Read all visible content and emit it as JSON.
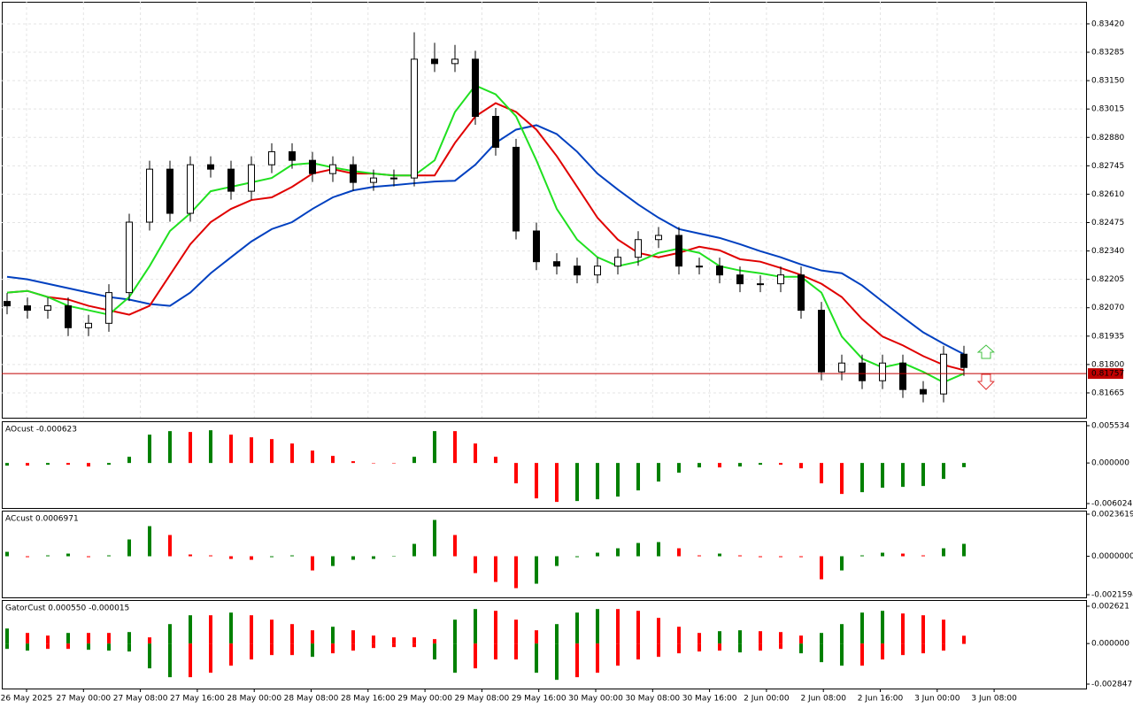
{
  "chart_data": [
    {
      "type": "candlestick",
      "grid": true,
      "up_color": "#ffffff",
      "down_color": "#000000",
      "ylim": [
        0.81547,
        0.83525
      ],
      "yticks": [
        {
          "value": 0.8342,
          "label": "0.83420"
        },
        0.83285,
        {
          "value": 0.8315,
          "label": "0.83150"
        },
        0.83015,
        {
          "value": 0.8288,
          "label": "0.82880"
        },
        0.82745,
        {
          "value": 0.8261,
          "label": "0.82610"
        },
        0.82475,
        {
          "value": 0.8234,
          "label": "0.82340"
        },
        0.82205,
        {
          "value": 0.8207,
          "label": "0.82070"
        },
        0.81935,
        {
          "value": 0.818,
          "label": "0.81800"
        },
        0.81665
      ],
      "last_price": 0.81757,
      "last_price_color": "#c00000",
      "open": [
        0.821,
        0.82079,
        0.82058,
        0.82079,
        0.81975,
        0.81996,
        0.82142,
        0.82477,
        0.82729,
        0.82519,
        0.8275,
        0.82729,
        0.82624,
        0.8275,
        0.82812,
        0.82771,
        0.82708,
        0.8275,
        0.82666,
        0.82687,
        0.82687,
        0.83252,
        0.83231,
        0.83252,
        0.8298,
        0.82833,
        0.82435,
        0.82289,
        0.82268,
        0.82226,
        0.82268,
        0.8231,
        0.82394,
        0.82414,
        0.82268,
        0.82268,
        0.82226,
        0.82184,
        0.82184,
        0.82226,
        0.82058,
        0.81765,
        0.81807,
        0.81723,
        0.81807,
        0.81681,
        0.8166,
        0.81849
      ],
      "high": [
        0.8214,
        0.82119,
        0.82119,
        0.82119,
        0.82036,
        0.82182,
        0.82517,
        0.82769,
        0.82769,
        0.8279,
        0.8279,
        0.82769,
        0.8279,
        0.82852,
        0.82852,
        0.82811,
        0.8279,
        0.8279,
        0.82727,
        0.82727,
        0.8338,
        0.8333,
        0.8332,
        0.83292,
        0.8302,
        0.82873,
        0.82475,
        0.82329,
        0.82308,
        0.82308,
        0.8235,
        0.82434,
        0.82454,
        0.82454,
        0.82308,
        0.82308,
        0.82266,
        0.82224,
        0.82266,
        0.82266,
        0.82098,
        0.81847,
        0.81847,
        0.81847,
        0.81847,
        0.81721,
        0.81889,
        0.81889
      ],
      "low": [
        0.82039,
        0.82018,
        0.82018,
        0.81935,
        0.81935,
        0.81956,
        0.82102,
        0.82437,
        0.82479,
        0.82479,
        0.82689,
        0.82584,
        0.82584,
        0.8271,
        0.82731,
        0.82668,
        0.82668,
        0.82626,
        0.82626,
        0.82647,
        0.82647,
        0.83191,
        0.83191,
        0.8294,
        0.82793,
        0.82395,
        0.82249,
        0.82228,
        0.82186,
        0.82186,
        0.82228,
        0.8227,
        0.82354,
        0.82228,
        0.82228,
        0.82186,
        0.82144,
        0.82144,
        0.82144,
        0.82018,
        0.81725,
        0.81725,
        0.81683,
        0.81683,
        0.81641,
        0.8162,
        0.8162,
        0.81746
      ],
      "close": [
        0.82079,
        0.82058,
        0.82079,
        0.81975,
        0.81996,
        0.82142,
        0.82477,
        0.82729,
        0.82519,
        0.8275,
        0.82729,
        0.82624,
        0.8275,
        0.82812,
        0.82771,
        0.82708,
        0.8275,
        0.82666,
        0.82687,
        0.82687,
        0.83252,
        0.83231,
        0.83252,
        0.8298,
        0.82833,
        0.82435,
        0.82289,
        0.82268,
        0.82226,
        0.82268,
        0.8231,
        0.82394,
        0.82414,
        0.82268,
        0.82268,
        0.82226,
        0.82184,
        0.82184,
        0.82226,
        0.82058,
        0.81765,
        0.81807,
        0.81723,
        0.81807,
        0.81681,
        0.8166,
        0.81849,
        0.81786
      ],
      "series": [
        {
          "color": "#0040c0",
          "values": [
            0.82217,
            0.82205,
            0.82184,
            0.82163,
            0.82142,
            0.82121,
            0.82109,
            0.82088,
            0.82079,
            0.82142,
            0.82234,
            0.8231,
            0.82385,
            0.82444,
            0.82477,
            0.8254,
            0.82595,
            0.82628,
            0.82645,
            0.82653,
            0.82662,
            0.8267,
            0.82674,
            0.8275,
            0.82854,
            0.82917,
            0.82938,
            0.82896,
            0.82812,
            0.82708,
            0.82632,
            0.82561,
            0.82498,
            0.82444,
            0.82423,
            0.82402,
            0.82372,
            0.82339,
            0.8231,
            0.82276,
            0.82247,
            0.82234,
            0.82176,
            0.821,
            0.82025,
            0.81953,
            0.81899,
            0.81849
          ]
        },
        {
          "color": "#e00000",
          "values": [
            0.82142,
            0.8215,
            0.82121,
            0.82109,
            0.82079,
            0.82058,
            0.82037,
            0.82079,
            0.82226,
            0.82372,
            0.82477,
            0.8254,
            0.82582,
            0.82595,
            0.82645,
            0.82708,
            0.82729,
            0.82708,
            0.82708,
            0.82699,
            0.82699,
            0.82699,
            0.82854,
            0.8298,
            0.83043,
            0.83001,
            0.82917,
            0.82791,
            0.82645,
            0.82498,
            0.82394,
            0.82331,
            0.8231,
            0.82331,
            0.8236,
            0.82343,
            0.82301,
            0.82289,
            0.82259,
            0.82226,
            0.82184,
            0.82121,
            0.82016,
            0.81933,
            0.81891,
            0.8184,
            0.81798,
            0.81773
          ]
        },
        {
          "color": "#20e020",
          "values": [
            0.82142,
            0.8215,
            0.82121,
            0.82079,
            0.82058,
            0.82037,
            0.82121,
            0.82268,
            0.82435,
            0.82519,
            0.82624,
            0.82645,
            0.82666,
            0.82687,
            0.8275,
            0.82758,
            0.82737,
            0.8272,
            0.82708,
            0.82699,
            0.82699,
            0.82771,
            0.83001,
            0.83127,
            0.83085,
            0.8298,
            0.82771,
            0.8254,
            0.82394,
            0.8231,
            0.82268,
            0.82289,
            0.82331,
            0.82352,
            0.82331,
            0.82268,
            0.82247,
            0.82234,
            0.82217,
            0.82217,
            0.82142,
            0.81933,
            0.81828,
            0.81786,
            0.81807,
            0.81765,
            0.81715,
            0.81757
          ]
        }
      ]
    },
    {
      "type": "bar",
      "title": "AOcust -0.000623",
      "up_color": "#008000",
      "down_color": "#ff0000",
      "ylim": [
        -0.006681,
        0.006191
      ],
      "yticks": [
        0.005534,
        {
          "value": 0,
          "label": "0.000000"
        },
        -0.006024
      ],
      "values": [
        -0.000394,
        -0.000394,
        -0.000263,
        -0.000263,
        -0.000525,
        -0.000263,
        0.000919,
        0.004202,
        0.004727,
        0.004596,
        0.004858,
        0.004202,
        0.003808,
        0.003545,
        0.002889,
        0.001838,
        0.00105,
        0.000263,
        0,
        0,
        0.000919,
        0.004727,
        0.004727,
        0.002889,
        0.000919,
        -0.00302,
        -0.005252,
        -0.005777,
        -0.005646,
        -0.005383,
        -0.004989,
        -0.00407,
        -0.002757,
        -0.001444,
        -0.000657,
        -0.000657,
        -0.000525,
        -0.000263,
        -0.000263,
        -0.000788,
        -0.00302,
        -0.004596,
        -0.004333,
        -0.003676,
        -0.003545,
        -0.003414,
        -0.002363,
        -0.000623
      ]
    },
    {
      "type": "bar",
      "title": "ACcust 0.0006971",
      "up_color": "#008000",
      "down_color": "#ff0000",
      "ylim": [
        -0.0023085,
        0.0025607
      ],
      "yticks": [
        0.0023619,
        {
          "value": 0,
          "label": "0.0000000"
        },
        -0.0021594
      ],
      "values": [
        0.0002485,
        -4.97e-05,
        4.97e-05,
        0.0001491,
        -4.97e-05,
        4.97e-05,
        0.0009443,
        0.0016898,
        0.0011928,
        9.94e-05,
        4.97e-05,
        -0.0001491,
        -0.0001988,
        -4.97e-05,
        4.97e-05,
        -0.0007952,
        -0.0005467,
        -0.0001988,
        -0.0001491,
        0,
        0.0006958,
        0.0020377,
        0.0011928,
        -0.0009443,
        -0.0014413,
        -0.0017892,
        -0.0015407,
        -0.0005467,
        -4.97e-05,
        0.0001988,
        0.0004473,
        0.0007455,
        0.0007952,
        0.0004473,
        4.97e-05,
        0.0001491,
        4.97e-05,
        -4.97e-05,
        -4.97e-05,
        -4.97e-05,
        -0.0012922,
        -0.0007952,
        4.97e-05,
        0.0001988,
        0.0001491,
        4.97e-05,
        0.0004473,
        0.0006971
      ]
    },
    {
      "type": "gator",
      "title": "GatorCust 0.000550 -0.000015",
      "up_color": "#008000",
      "down_color": "#ff0000",
      "ylim": [
        -0.003158,
        0.003056
      ],
      "yticks": [
        0.002621,
        {
          "value": 0,
          "label": "0.000000"
        },
        -0.002847
      ],
      "upper": [
        0.001056,
        0.000745,
        0.000559,
        0.000745,
        0.000745,
        0.000745,
        0.000807,
        0.000435,
        0.001366,
        0.001987,
        0.001987,
        0.002174,
        0.001987,
        0.001677,
        0.001366,
        0.000932,
        0.00118,
        0.000932,
        0.000559,
        0.000435,
        0.000435,
        0.000311,
        0.001677,
        0.002422,
        0.002298,
        0.001677,
        0.000932,
        0.001366,
        0.002174,
        0.002422,
        0.002422,
        0.002298,
        0.001801,
        0.00118,
        0.000745,
        0.000869,
        0.000932,
        0.000869,
        0.000807,
        0.000559,
        0.000745,
        0.001366,
        0.002174,
        0.002298,
        0.002111,
        0.001987,
        0.001677,
        0.00055
      ],
      "lower": [
        -0.000373,
        -0.000497,
        -0.000373,
        -0.000373,
        -0.000435,
        -0.000497,
        -0.000559,
        -0.001739,
        -0.00236,
        -0.00236,
        -0.002049,
        -0.001553,
        -0.001118,
        -0.000807,
        -0.000807,
        -0.000932,
        -0.000683,
        -0.000497,
        -0.000311,
        -0.000248,
        -0.000248,
        -0.001118,
        -0.002049,
        -0.001739,
        -0.001118,
        -0.001118,
        -0.002049,
        -0.002546,
        -0.00236,
        -0.002049,
        -0.001553,
        -0.001118,
        -0.000932,
        -0.000683,
        -0.000559,
        -0.000497,
        -0.000621,
        -0.000497,
        -0.000373,
        -0.000683,
        -0.001304,
        -0.001553,
        -0.001553,
        -0.001118,
        -0.000807,
        -0.000683,
        -0.000497,
        -1.5e-05
      ],
      "x_labels": [
        "26 May 2025",
        "27 May 00:00",
        "27 May 08:00",
        "27 May 16:00",
        "28 May 00:00",
        "28 May 08:00",
        "28 May 16:00",
        "29 May 00:00",
        "29 May 08:00",
        "29 May 16:00",
        "30 May 00:00",
        "30 May 08:00",
        "30 May 16:00",
        "2 Jun 00:00",
        "2 Jun 08:00",
        "2 Jun 16:00",
        "3 Jun 00:00",
        "3 Jun 08:00"
      ]
    }
  ]
}
